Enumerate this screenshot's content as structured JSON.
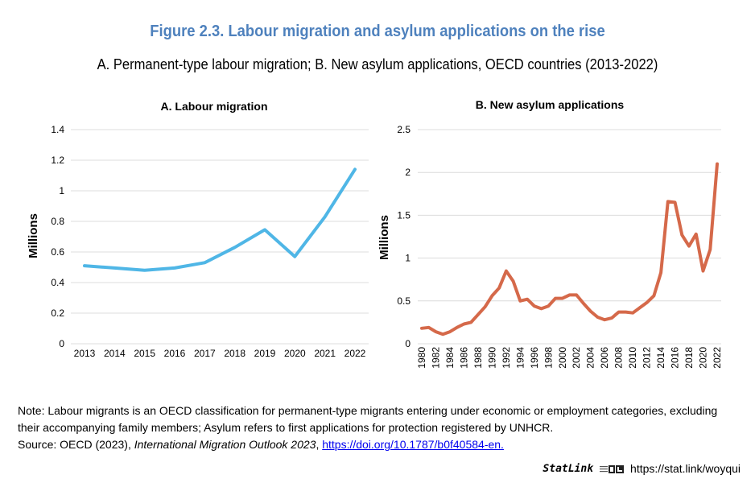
{
  "header": {
    "title": "Figure 2.3. Labour migration and asylum applications on the rise",
    "subtitle": "A. Permanent-type labour migration; B. New asylum applications, OECD countries (2013-2022)"
  },
  "colors": {
    "title": "#4e81bd",
    "series_a": "#4fb6e6",
    "series_b": "#d5694a"
  },
  "chart_data": [
    {
      "type": "line",
      "title": "A. Labour migration",
      "xlabel": "",
      "ylabel": "Millions",
      "ylim": [
        0,
        1.4
      ],
      "yticks": [
        "0",
        "0.2",
        "0.4",
        "0.6",
        "0.8",
        "1",
        "1.2",
        "1.4"
      ],
      "ytick_values": [
        0,
        0.2,
        0.4,
        0.6,
        0.8,
        1.0,
        1.2,
        1.4
      ],
      "grid": true,
      "x": [
        "2013",
        "2014",
        "2015",
        "2016",
        "2017",
        "2018",
        "2019",
        "2020",
        "2021",
        "2022"
      ],
      "series": [
        {
          "name": "Labour migration",
          "values": [
            0.51,
            0.495,
            0.48,
            0.495,
            0.53,
            0.63,
            0.745,
            0.57,
            0.83,
            1.14
          ]
        }
      ]
    },
    {
      "type": "line",
      "title": "B. New asylum applications",
      "xlabel": "",
      "ylabel": "Millions",
      "ylim": [
        0,
        2.5
      ],
      "yticks": [
        "0",
        "0.5",
        "1",
        "1.5",
        "2",
        "2.5"
      ],
      "ytick_values": [
        0,
        0.5,
        1.0,
        1.5,
        2.0,
        2.5
      ],
      "grid": true,
      "x": [
        "1980",
        "1981",
        "1982",
        "1983",
        "1984",
        "1985",
        "1986",
        "1987",
        "1988",
        "1989",
        "1990",
        "1991",
        "1992",
        "1993",
        "1994",
        "1995",
        "1996",
        "1997",
        "1998",
        "1999",
        "2000",
        "2001",
        "2002",
        "2003",
        "2004",
        "2005",
        "2006",
        "2007",
        "2008",
        "2009",
        "2010",
        "2011",
        "2012",
        "2013",
        "2014",
        "2015",
        "2016",
        "2017",
        "2018",
        "2019",
        "2020",
        "2021",
        "2022"
      ],
      "x_tick_labels_every": 2,
      "series": [
        {
          "name": "New asylum applications",
          "values": [
            0.18,
            0.19,
            0.14,
            0.11,
            0.14,
            0.19,
            0.23,
            0.25,
            0.34,
            0.43,
            0.56,
            0.65,
            0.85,
            0.73,
            0.5,
            0.52,
            0.44,
            0.41,
            0.44,
            0.53,
            0.53,
            0.57,
            0.57,
            0.47,
            0.38,
            0.31,
            0.28,
            0.3,
            0.37,
            0.37,
            0.36,
            0.42,
            0.48,
            0.56,
            0.83,
            1.66,
            1.65,
            1.27,
            1.14,
            1.28,
            0.85,
            1.1,
            2.1
          ]
        }
      ]
    }
  ],
  "notes": {
    "note": "Note: Labour migrants is an OECD classification for permanent-type migrants entering under economic or employment categories, excluding their accompanying family members; Asylum refers to first applications for protection registered by UNHCR.",
    "source_prefix": "Source: OECD (2023), ",
    "source_title": "International Migration Outlook 2023",
    "source_sep": ", ",
    "source_link": "https://doi.org/10.1787/b0f40584-en."
  },
  "statlink": {
    "brand": "StatLink",
    "icon": "statlink-logo-icon",
    "url": "https://stat.link/woyqui"
  }
}
